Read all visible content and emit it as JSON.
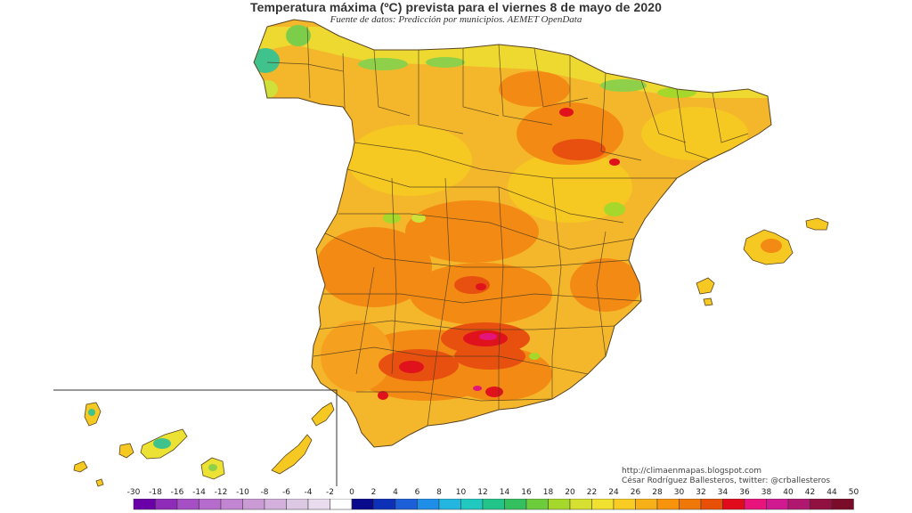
{
  "header": {
    "title": "Temperatura máxima (ºC) prevista para el viernes 8 de mayo de 2020",
    "subtitle": "Fuente de datos: Predicción por municipios. AEMET OpenData"
  },
  "credits": {
    "site": "http://climaenmapas.blogspot.com",
    "author": "César Rodríguez Ballesteros, twitter: @crballesteros"
  },
  "scale": {
    "labels": [
      "-30",
      "-18",
      "-16",
      "-14",
      "-12",
      "-10",
      "-8",
      "-6",
      "-4",
      "-2",
      "0",
      "2",
      "4",
      "6",
      "8",
      "10",
      "12",
      "14",
      "16",
      "18",
      "20",
      "22",
      "24",
      "26",
      "28",
      "30",
      "32",
      "34",
      "36",
      "38",
      "40",
      "42",
      "44",
      "50"
    ],
    "colors": [
      "#6a00a8",
      "#8e2bb8",
      "#a64fc4",
      "#b66ccc",
      "#c285d2",
      "#ca9bd5",
      "#d3b1dc",
      "#ddc8e4",
      "#e8dcee",
      "#ffffff",
      "#0a0a8c",
      "#0d30b8",
      "#1c5fd8",
      "#1f8ee8",
      "#22b6e0",
      "#20c8c0",
      "#22c48a",
      "#35c060",
      "#6ccc3c",
      "#a6d82c",
      "#d6e030",
      "#f0e030",
      "#f8cc22",
      "#f8b018",
      "#f8940c",
      "#f07808",
      "#e85008",
      "#e00c1c",
      "#e8147c",
      "#d01890",
      "#b01870",
      "#901040",
      "#7a0c2a"
    ]
  },
  "map": {
    "colors": {
      "sea": "#ffffff",
      "land_base": "#f4b62a",
      "warm": "#f28a14",
      "hot": "#e85010",
      "very_hot": "#e0121c",
      "extreme": "#e4157a",
      "cool": "#ece233",
      "mild": "#f6c822",
      "cold": "#3fc28b",
      "borders": "#4a3a20"
    }
  }
}
